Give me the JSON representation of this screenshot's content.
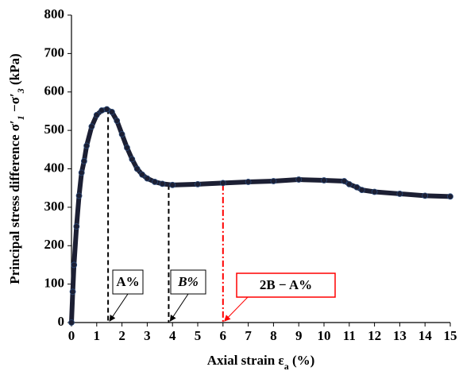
{
  "chart_data": {
    "type": "line",
    "xlabel": [
      "Axial strain ε",
      "a",
      " (%)"
    ],
    "ylabel": [
      "Principal stress difference σ′",
      "1",
      " −σ′",
      "3",
      "  (kPa)"
    ],
    "x": [
      0,
      0.05,
      0.1,
      0.2,
      0.3,
      0.4,
      0.5,
      0.6,
      0.8,
      1.0,
      1.2,
      1.4,
      1.6,
      1.8,
      2.0,
      2.2,
      2.4,
      2.6,
      2.8,
      3.0,
      3.3,
      3.6,
      4.0,
      5.0,
      6.0,
      7.0,
      8.0,
      9.0,
      10.0,
      10.8,
      11.0,
      11.3,
      11.5,
      12.0,
      13.0,
      14.0,
      15.0
    ],
    "series": [
      {
        "color": "#1c1f33",
        "values": [
          0,
          80,
          150,
          250,
          330,
          390,
          420,
          460,
          510,
          540,
          552,
          555,
          548,
          525,
          490,
          455,
          425,
          400,
          385,
          375,
          366,
          361,
          358,
          360,
          363,
          366,
          368,
          372,
          370,
          368,
          360,
          352,
          345,
          340,
          335,
          330,
          328
        ]
      }
    ],
    "xlim": [
      0,
      15
    ],
    "xticks": [
      0,
      1,
      2,
      3,
      4,
      5,
      6,
      7,
      8,
      9,
      10,
      11,
      12,
      13,
      14,
      15
    ],
    "ylim": [
      0,
      800
    ],
    "yticks": [
      0,
      100,
      200,
      300,
      400,
      500,
      600,
      700,
      800
    ],
    "annotations": [
      {
        "text": "A%",
        "x": 1.45,
        "color": "#000000"
      },
      {
        "text": "B%",
        "x": 3.85,
        "color": "#000000"
      },
      {
        "text": "2B − A%",
        "x": 6,
        "color": "#ff0000"
      }
    ]
  }
}
